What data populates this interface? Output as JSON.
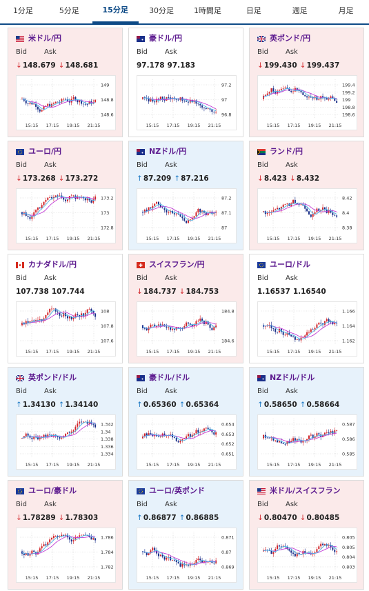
{
  "tabs": [
    {
      "label": "1分足",
      "active": false
    },
    {
      "label": "5分足",
      "active": false
    },
    {
      "label": "15分足",
      "active": true
    },
    {
      "label": "30分足",
      "active": false
    },
    {
      "label": "1時間足",
      "active": false
    },
    {
      "label": "日足",
      "active": false
    },
    {
      "label": "週足",
      "active": false
    },
    {
      "label": "月足",
      "active": false
    }
  ],
  "labels": {
    "bid": "Bid",
    "ask": "Ask"
  },
  "colors": {
    "down_bg": "#fbeaea",
    "up_bg": "#e7f2fb",
    "up_candle": "#d2262b",
    "down_candle": "#1a2f8a",
    "ma_line": "#c23bd4",
    "ma_line2": "#4fb6e8"
  },
  "cards": [
    {
      "name": "米ドル/円",
      "flag": "us-jp-flag",
      "dir": "down",
      "bid": "148.679",
      "ask": "148.681",
      "yticks": [
        "149",
        "148.8",
        "148.6"
      ],
      "xticks": [
        "15:15",
        "17:15",
        "19:15",
        "21:15"
      ]
    },
    {
      "name": "豪ドル/円",
      "flag": "au-jp-flag",
      "dir": "flat",
      "bid": "97.178",
      "ask": "97.183",
      "yticks": [
        "97.2",
        "97",
        "96.8"
      ],
      "xticks": [
        "15:15",
        "17:15",
        "19:15",
        "21:15"
      ]
    },
    {
      "name": "英ポンド/円",
      "flag": "gb-jp-flag",
      "dir": "down",
      "bid": "199.430",
      "ask": "199.437",
      "yticks": [
        "199.4",
        "199.2",
        "199",
        "198.8",
        "198.6"
      ],
      "xticks": [
        "15:15",
        "17:15",
        "19:15",
        "21:15"
      ]
    },
    {
      "name": "ユーロ/円",
      "flag": "eu-jp-flag",
      "dir": "down",
      "bid": "173.268",
      "ask": "173.272",
      "yticks": [
        "173.2",
        "173",
        "172.8"
      ],
      "xticks": [
        "15:15",
        "17:15",
        "19:15",
        "21:15"
      ]
    },
    {
      "name": "NZドル/円",
      "flag": "nz-jp-flag",
      "dir": "up",
      "bid": "87.209",
      "ask": "87.216",
      "yticks": [
        "87.2",
        "87.1",
        "87"
      ],
      "xticks": [
        "15:15",
        "17:15",
        "19:15",
        "21:15"
      ]
    },
    {
      "name": "ランド/円",
      "flag": "za-jp-flag",
      "dir": "down",
      "bid": "8.423",
      "ask": "8.432",
      "yticks": [
        "8.42",
        "8.4",
        "8.38"
      ],
      "xticks": [
        "15:15",
        "17:15",
        "19:15",
        "21:15"
      ]
    },
    {
      "name": "カナダドル/円",
      "flag": "ca-jp-flag",
      "dir": "flat",
      "bid": "107.738",
      "ask": "107.744",
      "yticks": [
        "108",
        "107.8",
        "107.6"
      ],
      "xticks": [
        "15:15",
        "17:15",
        "19:15",
        "21:15"
      ]
    },
    {
      "name": "スイスフラン/円",
      "flag": "ch-jp-flag",
      "dir": "down",
      "bid": "184.737",
      "ask": "184.753",
      "yticks": [
        "184.8",
        "184.6"
      ],
      "xticks": [
        "15:15",
        "17:15",
        "19:15",
        "21:15"
      ]
    },
    {
      "name": "ユーロ/ドル",
      "flag": "eu-us-flag",
      "dir": "flat",
      "bid": "1.16537",
      "ask": "1.16540",
      "yticks": [
        "1.166",
        "1.164",
        "1.162"
      ],
      "xticks": [
        "15:15",
        "17:15",
        "19:15",
        "21:15"
      ]
    },
    {
      "name": "英ポンド/ドル",
      "flag": "gb-us-flag",
      "dir": "up",
      "bid": "1.34130",
      "ask": "1.34140",
      "yticks": [
        "1.342",
        "1.34",
        "1.338",
        "1.336",
        "1.334"
      ],
      "xticks": [
        "15:15",
        "17:15",
        "19:15",
        "21:15"
      ]
    },
    {
      "name": "豪ドル/ドル",
      "flag": "au-us-flag",
      "dir": "up",
      "bid": "0.65360",
      "ask": "0.65364",
      "yticks": [
        "0.654",
        "0.653",
        "0.652",
        "0.651"
      ],
      "xticks": [
        "15:15",
        "17:15",
        "19:15",
        "21:15"
      ]
    },
    {
      "name": "NZドル/ドル",
      "flag": "nz-us-flag",
      "dir": "up",
      "bid": "0.58650",
      "ask": "0.58664",
      "yticks": [
        "0.587",
        "0.586",
        "0.585"
      ],
      "xticks": [
        "15:15",
        "17:15",
        "19:15",
        "21:15"
      ]
    },
    {
      "name": "ユーロ/豪ドル",
      "flag": "eu-au-flag",
      "dir": "down",
      "bid": "1.78289",
      "ask": "1.78303",
      "yticks": [
        "1.786",
        "1.784",
        "1.782"
      ],
      "xticks": [
        "15:15",
        "17:15",
        "19:15",
        "21:15"
      ]
    },
    {
      "name": "ユーロ/英ポンド",
      "flag": "eu-gb-flag",
      "dir": "up",
      "bid": "0.86877",
      "ask": "0.86885",
      "yticks": [
        "0.871",
        "0.87",
        "0.869"
      ],
      "xticks": [
        "15:15",
        "17:15",
        "19:15",
        "21:15"
      ]
    },
    {
      "name": "米ドル/スイスフラン",
      "flag": "us-ch-flag",
      "dir": "down",
      "bid": "0.80470",
      "ask": "0.80485",
      "yticks": [
        "0.805",
        "0.805",
        "0.804",
        "0.803"
      ],
      "xticks": [
        "15:15",
        "17:15",
        "19:15",
        "21:15"
      ]
    }
  ]
}
